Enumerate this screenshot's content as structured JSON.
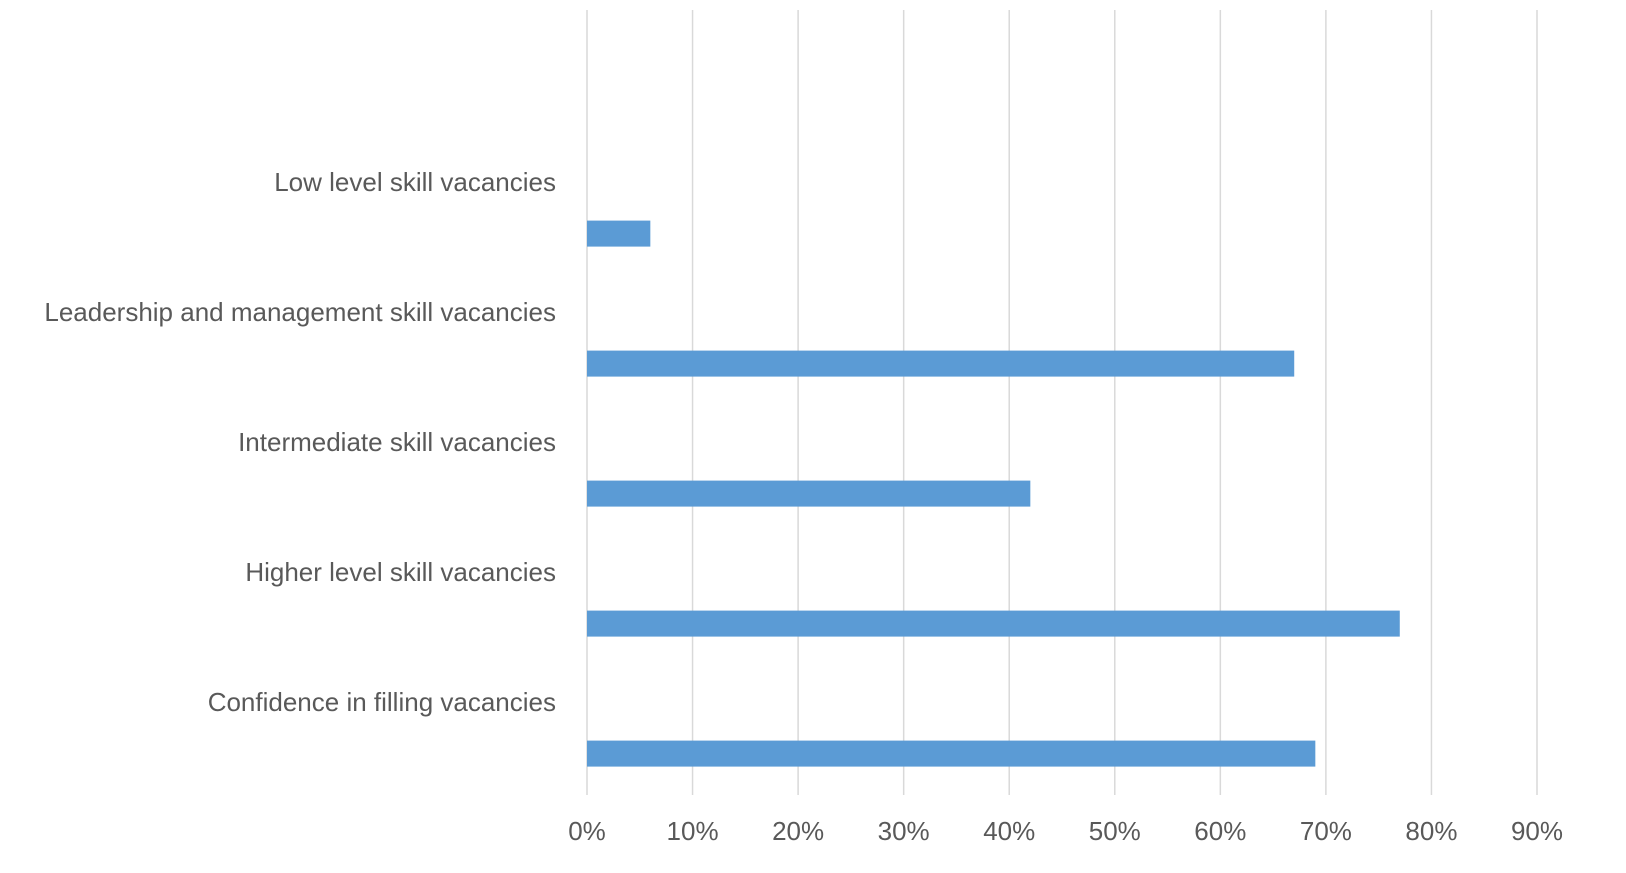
{
  "chart_data": {
    "type": "bar",
    "orientation": "horizontal",
    "title": "",
    "xlabel": "",
    "ylabel": "",
    "categories": [
      "Low level skill vacancies",
      "Leadership and management skill vacancies",
      "Intermediate skill vacancies",
      "Higher level skill vacancies",
      "Confidence in filling vacancies"
    ],
    "values": [
      6,
      67,
      42,
      77,
      69
    ],
    "xlim": [
      0,
      90
    ],
    "x_ticks": [
      "0%",
      "10%",
      "20%",
      "30%",
      "40%",
      "50%",
      "60%",
      "70%",
      "80%",
      "90%"
    ],
    "grid": "vertical",
    "legend": "none",
    "bar_color": "#5b9bd5",
    "grid_color": "#d9d9d9",
    "text_color": "#595959"
  }
}
